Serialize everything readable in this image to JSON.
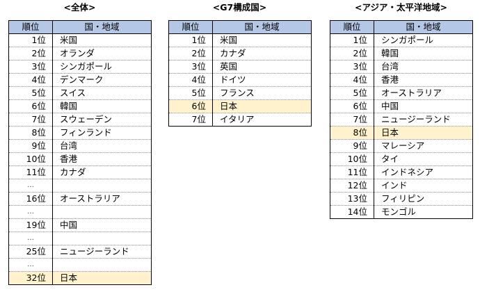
{
  "overall": {
    "title": "<全体>",
    "header": {
      "rank": "順位",
      "country": "国・地域"
    },
    "rows": [
      {
        "rank": "1位",
        "country": "米国",
        "highlight": false,
        "gap": false
      },
      {
        "rank": "2位",
        "country": "オランダ",
        "highlight": false,
        "gap": false
      },
      {
        "rank": "3位",
        "country": "シンガポール",
        "highlight": false,
        "gap": false
      },
      {
        "rank": "4位",
        "country": "デンマーク",
        "highlight": false,
        "gap": false
      },
      {
        "rank": "5位",
        "country": "スイス",
        "highlight": false,
        "gap": false
      },
      {
        "rank": "6位",
        "country": "韓国",
        "highlight": false,
        "gap": false
      },
      {
        "rank": "7位",
        "country": "スウェーデン",
        "highlight": false,
        "gap": false
      },
      {
        "rank": "8位",
        "country": "フィンランド",
        "highlight": false,
        "gap": false
      },
      {
        "rank": "9位",
        "country": "台湾",
        "highlight": false,
        "gap": false
      },
      {
        "rank": "10位",
        "country": "香港",
        "highlight": false,
        "gap": false
      },
      {
        "rank": "11位",
        "country": "カナダ",
        "highlight": false,
        "gap": false
      },
      {
        "rank": "…",
        "country": "",
        "highlight": false,
        "gap": true
      },
      {
        "rank": "16位",
        "country": "オーストラリア",
        "highlight": false,
        "gap": false
      },
      {
        "rank": "…",
        "country": "",
        "highlight": false,
        "gap": true
      },
      {
        "rank": "19位",
        "country": "中国",
        "highlight": false,
        "gap": false
      },
      {
        "rank": "…",
        "country": "",
        "highlight": false,
        "gap": true
      },
      {
        "rank": "25位",
        "country": "ニュージーランド",
        "highlight": false,
        "gap": false
      },
      {
        "rank": "…",
        "country": "",
        "highlight": false,
        "gap": true
      },
      {
        "rank": "32位",
        "country": "日本",
        "highlight": true,
        "gap": false
      }
    ]
  },
  "g7": {
    "title": "<G7構成国>",
    "header": {
      "rank": "順位",
      "country": "国・地域"
    },
    "rows": [
      {
        "rank": "1位",
        "country": "米国",
        "highlight": false,
        "gap": false
      },
      {
        "rank": "2位",
        "country": "カナダ",
        "highlight": false,
        "gap": false
      },
      {
        "rank": "3位",
        "country": "英国",
        "highlight": false,
        "gap": false
      },
      {
        "rank": "4位",
        "country": "ドイツ",
        "highlight": false,
        "gap": false
      },
      {
        "rank": "5位",
        "country": "フランス",
        "highlight": false,
        "gap": false
      },
      {
        "rank": "6位",
        "country": "日本",
        "highlight": true,
        "gap": false
      },
      {
        "rank": "7位",
        "country": "イタリア",
        "highlight": false,
        "gap": false
      }
    ]
  },
  "asia_pacific": {
    "title": "<アジア・太平洋地域>",
    "header": {
      "rank": "順位",
      "country": "国・地域"
    },
    "rows": [
      {
        "rank": "1位",
        "country": "シンガポール",
        "highlight": false,
        "gap": false
      },
      {
        "rank": "2位",
        "country": "韓国",
        "highlight": false,
        "gap": false
      },
      {
        "rank": "3位",
        "country": "台湾",
        "highlight": false,
        "gap": false
      },
      {
        "rank": "4位",
        "country": "香港",
        "highlight": false,
        "gap": false
      },
      {
        "rank": "5位",
        "country": "オーストラリア",
        "highlight": false,
        "gap": false
      },
      {
        "rank": "6位",
        "country": "中国",
        "highlight": false,
        "gap": false
      },
      {
        "rank": "7位",
        "country": "ニュージーランド",
        "highlight": false,
        "gap": false
      },
      {
        "rank": "8位",
        "country": "日本",
        "highlight": true,
        "gap": false
      },
      {
        "rank": "9位",
        "country": "マレーシア",
        "highlight": false,
        "gap": false
      },
      {
        "rank": "10位",
        "country": "タイ",
        "highlight": false,
        "gap": false
      },
      {
        "rank": "11位",
        "country": "インドネシア",
        "highlight": false,
        "gap": false
      },
      {
        "rank": "12位",
        "country": "インド",
        "highlight": false,
        "gap": false
      },
      {
        "rank": "13位",
        "country": "フィリピン",
        "highlight": false,
        "gap": false
      },
      {
        "rank": "14位",
        "country": "モンゴル",
        "highlight": false,
        "gap": false
      }
    ]
  },
  "colors": {
    "header_bg": "#b4c7e7",
    "highlight_bg": "#fff2cc"
  }
}
